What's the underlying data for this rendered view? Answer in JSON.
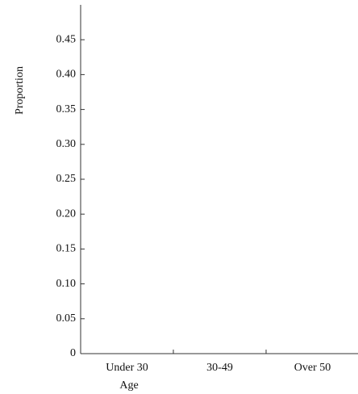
{
  "chart_data": {
    "type": "bar",
    "categories": [
      "Under 30",
      "30-49",
      "Over 50"
    ],
    "x_label": "Age",
    "y_label": "Proportion",
    "ylim": [
      0,
      0.5
    ],
    "yticks": [
      0,
      0.05,
      {
        "value": 0.1,
        "label": "0.10"
      },
      0.15,
      {
        "value": 0.2,
        "label": "0.20"
      },
      0.25,
      {
        "value": 0.3,
        "label": "0.30"
      },
      0.35,
      {
        "value": 0.4,
        "label": "0.40"
      },
      0.45
    ]
  }
}
